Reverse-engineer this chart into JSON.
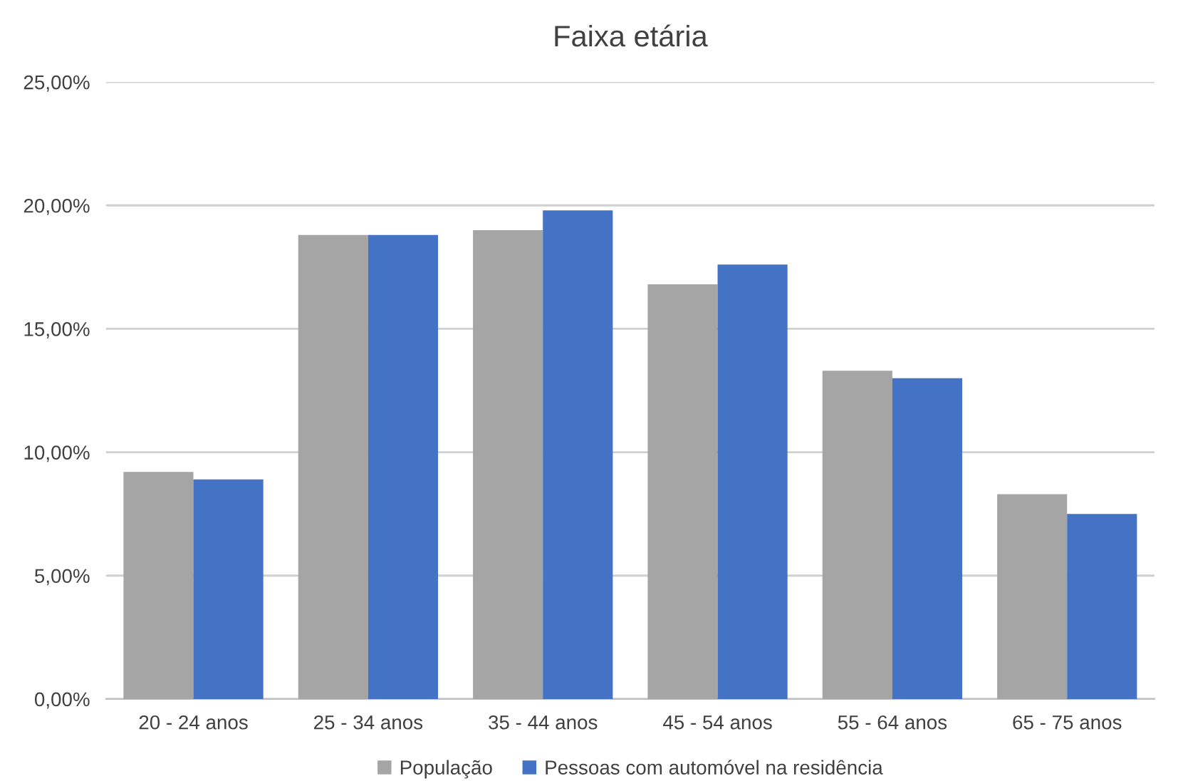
{
  "chart_data": {
    "type": "bar",
    "title": "Faixa etária",
    "categories": [
      "20 - 24 anos",
      "25 - 34 anos",
      "35 - 44 anos",
      "45 - 54 anos",
      "55 - 64 anos",
      "65 - 75 anos"
    ],
    "series": [
      {
        "name": "População",
        "color": "#a5a5a5",
        "values": [
          9.2,
          18.8,
          19.0,
          16.8,
          13.3,
          8.3
        ]
      },
      {
        "name": "Pessoas com automóvel na residência",
        "color": "#4472c4",
        "values": [
          8.9,
          18.8,
          19.8,
          17.6,
          13.0,
          7.5
        ]
      }
    ],
    "ylim": [
      0,
      25
    ],
    "yticks": [
      {
        "value": 0,
        "label": "0,00%"
      },
      {
        "value": 5,
        "label": "5,00%"
      },
      {
        "value": 10,
        "label": "10,00%"
      },
      {
        "value": 15,
        "label": "15,00%"
      },
      {
        "value": 20,
        "label": "20,00%"
      },
      {
        "value": 25,
        "label": "25,00%"
      }
    ],
    "grid": "y",
    "legend": "bottom"
  }
}
